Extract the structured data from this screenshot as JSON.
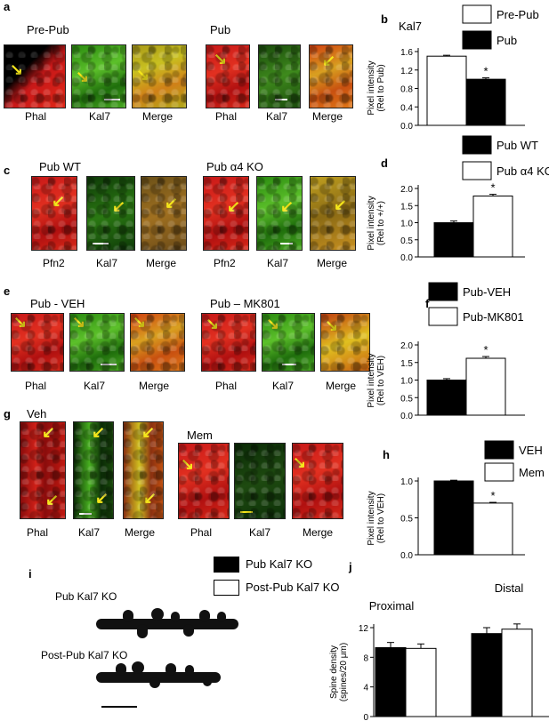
{
  "panels": {
    "a": {
      "label": "a",
      "groups": [
        {
          "title": "Pre-Pub",
          "tiles": [
            "Phal",
            "Kal7",
            "Merge"
          ]
        },
        {
          "title": "Pub",
          "tiles": [
            "Phal",
            "Kal7",
            "Merge"
          ]
        }
      ]
    },
    "c": {
      "label": "c",
      "groups": [
        {
          "title": "Pub WT",
          "tiles": [
            "Pfn2",
            "Kal7",
            "Merge"
          ]
        },
        {
          "title": "Pub α4 KO",
          "tiles": [
            "Pfn2",
            "Kal7",
            "Merge"
          ]
        }
      ]
    },
    "e": {
      "label": "e",
      "groups": [
        {
          "title": "Pub - VEH",
          "tiles": [
            "Phal",
            "Kal7",
            "Merge"
          ]
        },
        {
          "title": "Pub – MK801",
          "tiles": [
            "Phal",
            "Kal7",
            "Merge"
          ]
        }
      ]
    },
    "g": {
      "label": "g",
      "groups": [
        {
          "title": "Veh",
          "tiles": [
            "Phal",
            "Kal7",
            "Merge"
          ]
        },
        {
          "title": "Mem",
          "tiles": [
            "Phal",
            "Kal7",
            "Merge"
          ]
        }
      ]
    },
    "i": {
      "label": "i",
      "rows": [
        "Pub  Kal7 KO",
        "Post-Pub  Kal7 KO"
      ]
    }
  },
  "chart_data": [
    {
      "id": "b",
      "label": "b",
      "type": "bar",
      "title": "Kal7",
      "ylabel": "Pixel intensity\n(Rel to Pub)",
      "ylim": [
        0,
        1.6
      ],
      "yticks": [
        "0.0",
        "0.4",
        "0.8",
        "1.2",
        "1.6"
      ],
      "series": [
        {
          "name": "Pre-Pub",
          "values": [
            1.5
          ],
          "err": [
            0.02
          ],
          "fill": "#ffffff"
        },
        {
          "name": "Pub",
          "values": [
            1.0
          ],
          "err": [
            0.03
          ],
          "fill": "#000000",
          "star": "*"
        }
      ]
    },
    {
      "id": "d",
      "label": "d",
      "type": "bar",
      "ylabel": "Pixel intensity\n(Rel to +/+)",
      "ylim": [
        0,
        2.0
      ],
      "yticks": [
        "0.0",
        "0.5",
        "1.0",
        "1.5",
        "2.0"
      ],
      "series": [
        {
          "name": "Pub WT",
          "values": [
            1.0
          ],
          "err": [
            0.05
          ],
          "fill": "#000000"
        },
        {
          "name": "Pub α4 KO",
          "values": [
            1.78
          ],
          "err": [
            0.05
          ],
          "fill": "#ffffff",
          "star": "*"
        }
      ]
    },
    {
      "id": "f",
      "label": "f",
      "type": "bar",
      "ylabel": "Pixel intensity\n(Rel to VEH)",
      "ylim": [
        0,
        2.0
      ],
      "yticks": [
        "0.0",
        "0.5",
        "1.0",
        "1.5",
        "2.0"
      ],
      "series": [
        {
          "name": "Pub-VEH",
          "values": [
            1.0
          ],
          "err": [
            0.04
          ],
          "fill": "#000000"
        },
        {
          "name": "Pub-MK801",
          "values": [
            1.62
          ],
          "err": [
            0.05
          ],
          "fill": "#ffffff",
          "star": "*"
        }
      ]
    },
    {
      "id": "h",
      "label": "h",
      "type": "bar",
      "ylabel": "Pixel intensity\n(Rel to VEH)",
      "ylim": [
        0,
        1.0
      ],
      "yticks": [
        "0.0",
        "0.5",
        "1.0"
      ],
      "series": [
        {
          "name": "VEH",
          "values": [
            1.0
          ],
          "err": [
            0.01
          ],
          "fill": "#000000"
        },
        {
          "name": "Mem",
          "values": [
            0.7
          ],
          "err": [
            0.01
          ],
          "fill": "#ffffff",
          "star": "*"
        }
      ]
    },
    {
      "id": "j",
      "label": "j",
      "type": "bar",
      "ylabel": "Spine density\n(spines/20 μm)",
      "ylim": [
        0,
        12
      ],
      "yticks": [
        "0",
        "4",
        "8",
        "12"
      ],
      "categories": [
        "Proximal",
        "Distal"
      ],
      "series": [
        {
          "name": "Pub  Kal7 KO",
          "values": [
            9.3,
            11.2
          ],
          "err": [
            0.7,
            0.8
          ],
          "fill": "#000000"
        },
        {
          "name": "Post-Pub  Kal7 KO",
          "values": [
            9.2,
            11.8
          ],
          "err": [
            0.6,
            0.7
          ],
          "fill": "#ffffff"
        }
      ]
    }
  ],
  "colors": {
    "phal": "#d82818",
    "kal7": "#48a820",
    "merge": "#e07818",
    "arrow": "#f5e61a"
  }
}
